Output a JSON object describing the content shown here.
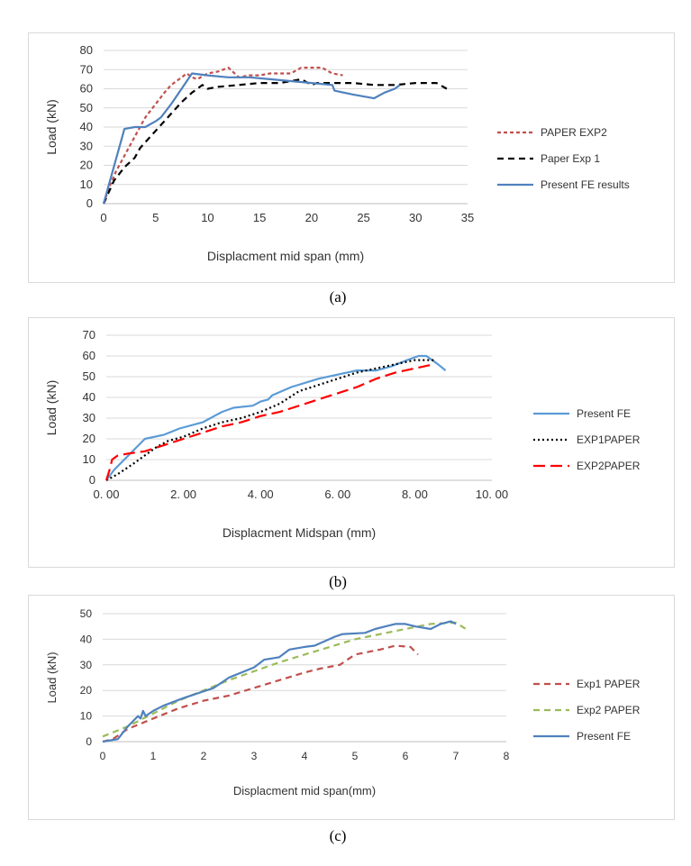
{
  "captions": {
    "a": "(a)",
    "b": "(b)",
    "c": "(c)"
  },
  "chart_data": [
    {
      "id": "a",
      "type": "line",
      "title": "",
      "xlabel": "Displacment mid span (mm)",
      "ylabel": "Load (kN)",
      "xlim": [
        0,
        35
      ],
      "ylim": [
        0,
        80
      ],
      "xticks": [
        0,
        5,
        10,
        15,
        20,
        25,
        30,
        35
      ],
      "xtick_labels": [
        "0",
        "5",
        "10",
        "15",
        "20",
        "25",
        "30",
        "35"
      ],
      "yticks": [
        0,
        10,
        20,
        30,
        40,
        50,
        60,
        70,
        80
      ],
      "ytick_labels": [
        "0",
        "10",
        "20",
        "30",
        "40",
        "50",
        "60",
        "70",
        "80"
      ],
      "grid": true,
      "legend_position": "right",
      "series": [
        {
          "name": "PAPER EXP2",
          "color": "#c0504d",
          "dash": "dotted-dash",
          "x": [
            0,
            0.5,
            1.2,
            2,
            3,
            4,
            5,
            6,
            6.5,
            7.5,
            8,
            8.5,
            9,
            10,
            11,
            12,
            13,
            14,
            15,
            16,
            17,
            18,
            19,
            20,
            21,
            22,
            23
          ],
          "y": [
            0,
            8,
            17,
            25,
            35,
            45,
            52,
            59,
            62,
            66,
            68,
            66,
            65,
            68,
            69,
            71,
            66,
            67,
            67,
            68,
            68,
            68,
            71,
            71,
            71,
            68,
            67
          ]
        },
        {
          "name": "Paper Exp 1",
          "color": "#000000",
          "dash": "dash",
          "x": [
            0,
            1,
            2,
            3,
            3.5,
            4.5,
            5.5,
            6.5,
            7.5,
            8.5,
            9.5,
            10,
            11,
            13,
            15,
            17,
            19,
            20,
            20.5,
            22,
            24,
            26,
            28,
            30,
            32,
            33
          ],
          "y": [
            0,
            12,
            19,
            24,
            29,
            35,
            41,
            47,
            53,
            58,
            62,
            60,
            61,
            62,
            63,
            63,
            65,
            62,
            63,
            63,
            63,
            62,
            62,
            63,
            63,
            60
          ]
        },
        {
          "name": "Present FE results",
          "color": "#4f81bd",
          "dash": "solid",
          "x": [
            0,
            2,
            3,
            4,
            5,
            5.5,
            6.5,
            7.5,
            8.5,
            10,
            12,
            14,
            16,
            18,
            20,
            22,
            22.2,
            24,
            26,
            27,
            28,
            28.5
          ],
          "y": [
            0,
            39,
            40,
            40,
            43,
            45,
            52,
            60,
            68,
            67,
            66,
            66,
            65,
            64,
            63,
            62,
            59,
            57,
            55,
            58,
            60,
            62
          ]
        }
      ]
    },
    {
      "id": "b",
      "type": "line",
      "title": "",
      "xlabel": "Displacment Midspan (mm)",
      "ylabel": "Load (kN)",
      "xlim": [
        0,
        10
      ],
      "ylim": [
        0,
        70
      ],
      "xticks": [
        0,
        2,
        4,
        6,
        8,
        10
      ],
      "xtick_labels": [
        "0. 00",
        "2. 00",
        "4. 00",
        "6. 00",
        "8. 00",
        "10. 00"
      ],
      "yticks": [
        0,
        10,
        20,
        30,
        40,
        50,
        60,
        70
      ],
      "ytick_labels": [
        "0",
        "10",
        "20",
        "30",
        "40",
        "50",
        "60",
        "70"
      ],
      "grid": true,
      "legend_position": "right",
      "series": [
        {
          "name": "Present FE",
          "color": "#5b9bd5",
          "dash": "solid",
          "x": [
            0,
            0.2,
            1.0,
            1.5,
            1.9,
            2.5,
            2.7,
            2.8,
            3.0,
            3.3,
            3.8,
            4.0,
            4.2,
            4.3,
            4.8,
            5.5,
            6.5,
            7.0,
            7.4,
            7.8,
            8.1,
            8.3,
            8.6,
            8.8
          ],
          "y": [
            0,
            5,
            20,
            22,
            25,
            28,
            30,
            31,
            33,
            35,
            36,
            38,
            39,
            41,
            45,
            49,
            53,
            53,
            55,
            58,
            60,
            60,
            56,
            53
          ]
        },
        {
          "name": "EXP1PAPER",
          "color": "#000000",
          "dash": "dotted",
          "x": [
            0,
            0.3,
            0.7,
            1.0,
            1.3,
            1.6,
            2.0,
            2.5,
            3.0,
            3.5,
            4.0,
            4.5,
            5.0,
            5.5,
            6.0,
            6.5,
            7.0,
            7.5,
            8.0,
            8.5
          ],
          "y": [
            0,
            3,
            8,
            12,
            16,
            19,
            21,
            25,
            28,
            30,
            33,
            37,
            43,
            46,
            49,
            52,
            54,
            56,
            58,
            58
          ]
        },
        {
          "name": "EXP2PAPER",
          "color": "#ff0000",
          "dash": "long-dash",
          "x": [
            0,
            0.1,
            0.15,
            0.3,
            0.6,
            1.0,
            1.5,
            2.0,
            2.5,
            3.0,
            3.5,
            4.0,
            4.5,
            5.0,
            5.5,
            6.0,
            6.5,
            7.0,
            7.5,
            8.0,
            8.5
          ],
          "y": [
            0,
            6,
            10,
            12,
            13,
            14,
            17,
            20,
            23,
            26,
            28,
            31,
            33,
            36,
            39,
            42,
            45,
            49,
            52,
            54,
            56
          ]
        }
      ]
    },
    {
      "id": "c",
      "type": "line",
      "title": "",
      "xlabel": "Displacment mid span(mm)",
      "ylabel": "Load (kN)",
      "xlim": [
        0,
        8
      ],
      "ylim": [
        0,
        50
      ],
      "xticks": [
        0,
        1,
        2,
        3,
        4,
        5,
        6,
        7,
        8
      ],
      "xtick_labels": [
        "0",
        "1",
        "2",
        "3",
        "4",
        "5",
        "6",
        "7",
        "8"
      ],
      "yticks": [
        0,
        10,
        20,
        30,
        40,
        50
      ],
      "ytick_labels": [
        "0",
        "10",
        "20",
        "30",
        "40",
        "50"
      ],
      "grid": true,
      "legend_position": "right",
      "series": [
        {
          "name": "Exp1 PAPER",
          "color": "#c0504d",
          "dash": "dash",
          "x": [
            0,
            0.2,
            0.5,
            1.0,
            1.5,
            2.0,
            2.5,
            3.0,
            3.5,
            4.0,
            4.3,
            4.7,
            5.0,
            5.5,
            5.8,
            6.1,
            6.25
          ],
          "y": [
            0,
            1,
            5,
            9,
            13,
            16,
            18,
            21,
            24,
            27,
            28.5,
            30,
            34,
            36,
            37.5,
            37,
            34
          ]
        },
        {
          "name": "Exp2 PAPER",
          "color": "#9bbb59",
          "dash": "dash",
          "x": [
            0,
            0.5,
            1.0,
            1.5,
            2.0,
            2.5,
            3.0,
            3.5,
            4.0,
            4.5,
            5.0,
            5.5,
            6.0,
            6.5,
            7.0,
            7.2
          ],
          "y": [
            2,
            6,
            11,
            16,
            20,
            24,
            27.5,
            31,
            34,
            37,
            40,
            42,
            44,
            46,
            46.5,
            44
          ]
        },
        {
          "name": "Present FE",
          "color": "#4f81bd",
          "dash": "solid",
          "x": [
            0,
            0.3,
            0.5,
            0.7,
            0.75,
            0.8,
            0.85,
            1.0,
            1.2,
            1.6,
            2.2,
            2.5,
            3.0,
            3.2,
            3.5,
            3.7,
            4.0,
            4.2,
            4.6,
            4.75,
            5.2,
            5.4,
            5.6,
            5.8,
            6.0,
            6.2,
            6.5,
            6.7,
            6.9,
            7.0
          ],
          "y": [
            0,
            1,
            6,
            10,
            9,
            12,
            10,
            12,
            14,
            17,
            21,
            25,
            29,
            32,
            33,
            36,
            37,
            37.5,
            41,
            42,
            42.5,
            44,
            45,
            46,
            46,
            45,
            44,
            46,
            47,
            46
          ]
        }
      ]
    }
  ]
}
